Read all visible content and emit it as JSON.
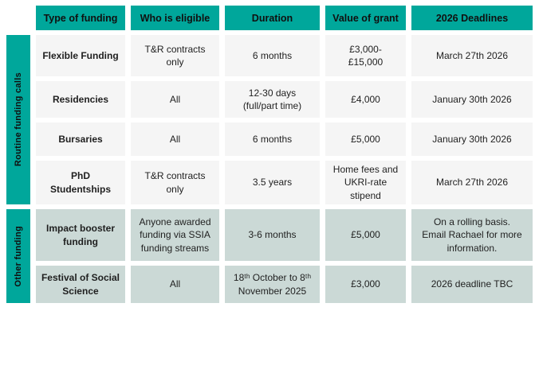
{
  "colors": {
    "teal": "#00A79B",
    "row_light": "#F5F5F5",
    "row_teal": "#CBD9D6",
    "text": "#1F1F1F"
  },
  "table": {
    "headers": [
      "Type of funding",
      "Who is eligible",
      "Duration",
      "Value of grant",
      "2026 Deadlines"
    ],
    "groups": [
      {
        "label": "Routine funding calls",
        "rows": [
          {
            "cells": [
              "Flexible Funding",
              "T&R contracts\nonly",
              "6 months",
              "£3,000-\n£15,000",
              "March 27th 2026"
            ]
          },
          {
            "cells": [
              "Residencies",
              "All",
              "12-30 days\n(full/part time)",
              "£4,000",
              "January 30th 2026"
            ]
          },
          {
            "cells": [
              "Bursaries",
              "All",
              "6 months",
              "£5,000",
              "January 30th 2026"
            ]
          },
          {
            "cells": [
              "PhD\nStudentships",
              "T&R contracts\nonly",
              "3.5 years",
              "Home fees and\nUKRI-rate\nstipend",
              "March 27th 2026"
            ]
          }
        ]
      },
      {
        "label": "Other funding",
        "rows": [
          {
            "cells": [
              "Impact booster\nfunding",
              "Anyone awarded\nfunding via SSIA\nfunding streams",
              "3-6 months",
              "£5,000",
              "On a rolling basis.\nEmail Rachael for more\ninformation."
            ]
          },
          {
            "cells": [
              "Festival of Social\nScience",
              "All",
              "18ᵗʰ October to 8ᵗʰ\nNovember 2025",
              "£3,000",
              "2026 deadline TBC"
            ]
          }
        ]
      }
    ]
  }
}
